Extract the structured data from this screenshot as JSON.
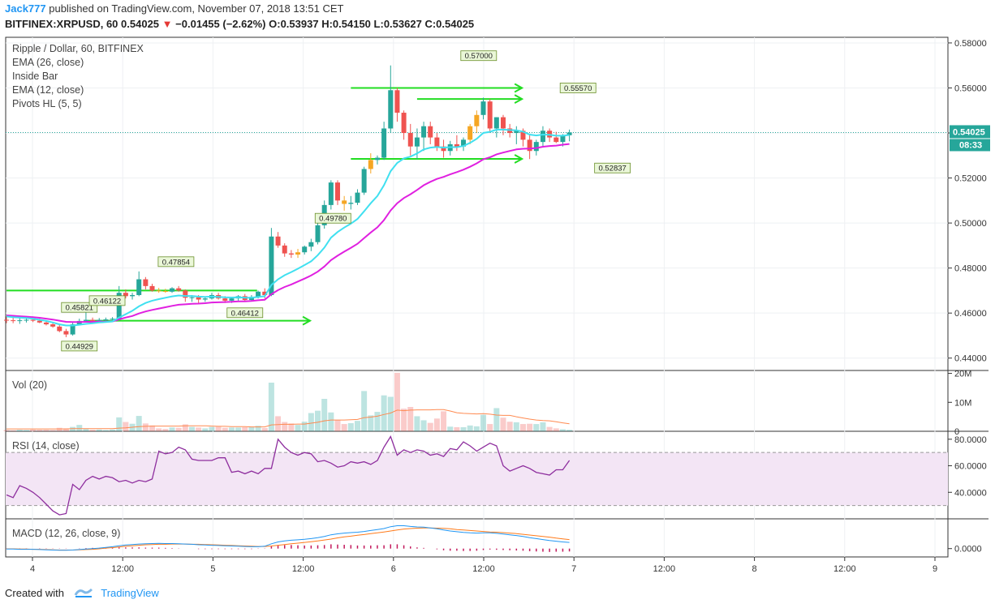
{
  "header": {
    "user": "Jack777",
    "published_text": " published on TradingView.com, November 07, 2018 13:51 CET",
    "symbol": "BITFINEX:XRPUSD, 60",
    "last": "0.54025",
    "change": "−0.01455 (−2.62%)",
    "ohlc": {
      "o_label": "O:",
      "o": "0.53937",
      "h_label": "H:",
      "h": "0.54150",
      "l_label": "L:",
      "l": "0.53627",
      "c_label": "C:",
      "c": "0.54025"
    }
  },
  "legend": {
    "title": "Ripple / Dollar, 60, BITFINEX",
    "ema26": "EMA (26, close)",
    "inside_bar": "Inside Bar",
    "ema12": "EMA (12, close)",
    "pivots": "Pivots HL (5, 5)"
  },
  "panes": {
    "vol": "Vol (20)",
    "rsi": "RSI (14, close)",
    "macd": "MACD (12, 26, close, 9)"
  },
  "price_tag": {
    "price": "0.54025",
    "countdown": "08:33"
  },
  "footer": {
    "created_with": "Created with",
    "brand": "TradingView"
  },
  "colors": {
    "up": "#26a69a",
    "down": "#ef5350",
    "inside": "#f5a623",
    "ema12": "#40e0f0",
    "ema26": "#e020e0",
    "green_lines": "#22dd22",
    "rsi": "#8e2e9e",
    "macd": "#2196f3",
    "signal": "#ff7a1a",
    "hist": "#c2185b"
  },
  "chart_data": {
    "type": "candlestick",
    "title": "Ripple / Dollar, 60, BITFINEX",
    "x_ticks": [
      "4",
      "12:00",
      "5",
      "12:00",
      "6",
      "12:00",
      "7",
      "12:00",
      "8",
      "12:00",
      "9"
    ],
    "price_axis": {
      "ticks": [
        "0.58000",
        "0.56000",
        "0.54000",
        "0.52000",
        "0.50000",
        "0.48000",
        "0.46000",
        "0.44000"
      ],
      "range": [
        0.4345,
        0.5825
      ]
    },
    "pivot_labels": [
      "0.45821",
      "0.46122",
      "0.44929",
      "0.47854",
      "0.46412",
      "0.49780",
      "0.57000",
      "0.55570",
      "0.52837"
    ],
    "green_levels": [
      {
        "price": 0.47,
        "from_bar": 0,
        "to_bar": 36
      },
      {
        "price": 0.4566,
        "from_bar": 12,
        "to_bar": 44,
        "arrow": true
      },
      {
        "price": 0.56,
        "from_bar": 52,
        "to_bar": 76,
        "arrow": true
      },
      {
        "price": 0.5551,
        "from_bar": 62,
        "to_bar": 76,
        "arrow": true
      },
      {
        "price": 0.5285,
        "from_bar": 52,
        "to_bar": 76,
        "arrow": true
      }
    ],
    "candles": [
      [
        0.457,
        0.4585,
        0.4555,
        0.4568
      ],
      [
        0.4568,
        0.458,
        0.4555,
        0.4565
      ],
      [
        0.4565,
        0.4582,
        0.4552,
        0.4568
      ],
      [
        0.4568,
        0.4582,
        0.4558,
        0.457
      ],
      [
        0.457,
        0.4585,
        0.456,
        0.4566
      ],
      [
        0.4566,
        0.4575,
        0.4555,
        0.4558
      ],
      [
        0.4558,
        0.4565,
        0.4545,
        0.455
      ],
      [
        0.455,
        0.4558,
        0.4535,
        0.454
      ],
      [
        0.454,
        0.4548,
        0.4515,
        0.452
      ],
      [
        0.452,
        0.453,
        0.4493,
        0.4505
      ],
      [
        0.4505,
        0.456,
        0.45,
        0.455
      ],
      [
        0.455,
        0.4575,
        0.4545,
        0.4565
      ],
      [
        0.4565,
        0.4612,
        0.456,
        0.457
      ],
      [
        0.457,
        0.458,
        0.456,
        0.4565
      ],
      [
        0.4565,
        0.4578,
        0.4558,
        0.457
      ],
      [
        0.457,
        0.458,
        0.456,
        0.4572
      ],
      [
        0.4572,
        0.4582,
        0.4565,
        0.4575
      ],
      [
        0.4575,
        0.472,
        0.457,
        0.469
      ],
      [
        0.469,
        0.4705,
        0.4665,
        0.4675
      ],
      [
        0.4675,
        0.469,
        0.466,
        0.468
      ],
      [
        0.468,
        0.4785,
        0.4675,
        0.475
      ],
      [
        0.475,
        0.476,
        0.4705,
        0.472
      ],
      [
        0.472,
        0.473,
        0.4695,
        0.47
      ],
      [
        0.47,
        0.4712,
        0.469,
        0.4698
      ],
      [
        0.4698,
        0.4708,
        0.469,
        0.4695
      ],
      [
        0.4695,
        0.4715,
        0.469,
        0.471
      ],
      [
        0.471,
        0.472,
        0.4695,
        0.47
      ],
      [
        0.47,
        0.4705,
        0.465,
        0.4668
      ],
      [
        0.4668,
        0.468,
        0.465,
        0.467
      ],
      [
        0.467,
        0.468,
        0.4641,
        0.466
      ],
      [
        0.466,
        0.4672,
        0.465,
        0.4665
      ],
      [
        0.4665,
        0.469,
        0.466,
        0.468
      ],
      [
        0.468,
        0.469,
        0.466,
        0.4665
      ],
      [
        0.4665,
        0.4675,
        0.4645,
        0.4655
      ],
      [
        0.4655,
        0.467,
        0.4645,
        0.4665
      ],
      [
        0.4665,
        0.468,
        0.4655,
        0.4675
      ],
      [
        0.4675,
        0.4685,
        0.465,
        0.4658
      ],
      [
        0.4658,
        0.468,
        0.4652,
        0.4672
      ],
      [
        0.4672,
        0.47,
        0.4665,
        0.4695
      ],
      [
        0.4695,
        0.471,
        0.4665,
        0.468
      ],
      [
        0.468,
        0.4978,
        0.4675,
        0.494
      ],
      [
        0.494,
        0.496,
        0.489,
        0.49
      ],
      [
        0.49,
        0.491,
        0.485,
        0.4865
      ],
      [
        0.4865,
        0.488,
        0.4845,
        0.486
      ],
      [
        0.486,
        0.4885,
        0.4845,
        0.487
      ],
      [
        0.487,
        0.49,
        0.486,
        0.4895
      ],
      [
        0.4895,
        0.493,
        0.4875,
        0.4915
      ],
      [
        0.4915,
        0.5,
        0.4905,
        0.499
      ],
      [
        0.499,
        0.51,
        0.4975,
        0.508
      ],
      [
        0.508,
        0.519,
        0.506,
        0.518
      ],
      [
        0.518,
        0.519,
        0.508,
        0.51
      ],
      [
        0.51,
        0.512,
        0.5055,
        0.5085
      ],
      [
        0.5085,
        0.512,
        0.506,
        0.509
      ],
      [
        0.509,
        0.515,
        0.508,
        0.5135
      ],
      [
        0.5135,
        0.525,
        0.5125,
        0.524
      ],
      [
        0.524,
        0.531,
        0.522,
        0.528
      ],
      [
        0.528,
        0.53,
        0.526,
        0.529
      ],
      [
        0.529,
        0.545,
        0.528,
        0.542
      ],
      [
        0.542,
        0.57,
        0.54,
        0.559
      ],
      [
        0.559,
        0.56,
        0.545,
        0.549
      ],
      [
        0.549,
        0.55,
        0.537,
        0.54
      ],
      [
        0.54,
        0.544,
        0.53,
        0.534
      ],
      [
        0.534,
        0.542,
        0.5284,
        0.538
      ],
      [
        0.538,
        0.545,
        0.532,
        0.543
      ],
      [
        0.543,
        0.545,
        0.535,
        0.538
      ],
      [
        0.538,
        0.54,
        0.532,
        0.534
      ],
      [
        0.534,
        0.537,
        0.529,
        0.532
      ],
      [
        0.532,
        0.5365,
        0.53,
        0.535
      ],
      [
        0.535,
        0.539,
        0.532,
        0.534
      ],
      [
        0.534,
        0.538,
        0.532,
        0.537
      ],
      [
        0.537,
        0.544,
        0.535,
        0.543
      ],
      [
        0.543,
        0.55,
        0.54,
        0.548
      ],
      [
        0.548,
        0.5557,
        0.546,
        0.554
      ],
      [
        0.554,
        0.555,
        0.54,
        0.542
      ],
      [
        0.542,
        0.547,
        0.538,
        0.547
      ],
      [
        0.547,
        0.548,
        0.539,
        0.542
      ],
      [
        0.542,
        0.544,
        0.538,
        0.54
      ],
      [
        0.54,
        0.543,
        0.535,
        0.541
      ],
      [
        0.541,
        0.542,
        0.534,
        0.537
      ],
      [
        0.537,
        0.539,
        0.5284,
        0.532
      ],
      [
        0.532,
        0.537,
        0.53,
        0.536
      ],
      [
        0.536,
        0.543,
        0.534,
        0.541
      ],
      [
        0.541,
        0.542,
        0.536,
        0.538
      ],
      [
        0.538,
        0.5405,
        0.5355,
        0.536
      ],
      [
        0.536,
        0.5395,
        0.534,
        0.539
      ],
      [
        0.539,
        0.5415,
        0.5363,
        0.5402
      ]
    ],
    "inside_bars": [
      23,
      24,
      44,
      51,
      55,
      70,
      71
    ],
    "ema12": [
      0.4585,
      0.4582,
      0.458,
      0.4578,
      0.4575,
      0.457,
      0.4565,
      0.4558,
      0.455,
      0.4545,
      0.4545,
      0.4548,
      0.4552,
      0.4555,
      0.4558,
      0.456,
      0.4563,
      0.458,
      0.4595,
      0.461,
      0.463,
      0.4645,
      0.4655,
      0.4662,
      0.4668,
      0.4674,
      0.4678,
      0.4676,
      0.4676,
      0.4673,
      0.4672,
      0.4673,
      0.4672,
      0.467,
      0.4669,
      0.467,
      0.4668,
      0.4668,
      0.4672,
      0.4675,
      0.4725,
      0.475,
      0.4768,
      0.4782,
      0.4797,
      0.4813,
      0.483,
      0.4857,
      0.4891,
      0.4935,
      0.496,
      0.498,
      0.4997,
      0.5018,
      0.5052,
      0.5088,
      0.512,
      0.5168,
      0.523,
      0.5267,
      0.5287,
      0.5295,
      0.5309,
      0.5327,
      0.5335,
      0.5338,
      0.5335,
      0.5337,
      0.5337,
      0.5342,
      0.5356,
      0.5374,
      0.54,
      0.5405,
      0.5415,
      0.5415,
      0.5413,
      0.5412,
      0.5406,
      0.5393,
      0.5389,
      0.5393,
      0.5392,
      0.5388,
      0.5388,
      0.5391
    ],
    "ema26": [
      0.459,
      0.4588,
      0.4586,
      0.4584,
      0.4582,
      0.4579,
      0.4575,
      0.4571,
      0.4566,
      0.4561,
      0.456,
      0.456,
      0.4561,
      0.4561,
      0.4562,
      0.4562,
      0.4563,
      0.4572,
      0.458,
      0.4587,
      0.4598,
      0.4607,
      0.4614,
      0.462,
      0.4626,
      0.4632,
      0.4637,
      0.4639,
      0.4641,
      0.4642,
      0.4644,
      0.4647,
      0.4648,
      0.4649,
      0.465,
      0.4652,
      0.4652,
      0.4654,
      0.4657,
      0.4659,
      0.4684,
      0.4702,
      0.4716,
      0.4727,
      0.474,
      0.4753,
      0.4767,
      0.4784,
      0.4807,
      0.4835,
      0.4855,
      0.4873,
      0.489,
      0.4908,
      0.4933,
      0.4958,
      0.4981,
      0.5013,
      0.5056,
      0.5088,
      0.5111,
      0.5128,
      0.5147,
      0.5168,
      0.5183,
      0.5196,
      0.5205,
      0.5216,
      0.5226,
      0.5237,
      0.525,
      0.5265,
      0.5283,
      0.5292,
      0.5305,
      0.5313,
      0.532,
      0.5327,
      0.533,
      0.5331,
      0.5333,
      0.5339,
      0.5342,
      0.5344,
      0.5348,
      0.5351
    ],
    "volume": {
      "y_ticks": [
        "20M",
        "10M",
        "0"
      ],
      "range": [
        0,
        21
      ],
      "unit": "M",
      "values": [
        0.4,
        0.3,
        0.5,
        0.4,
        0.6,
        0.5,
        0.5,
        0.4,
        1.2,
        1.0,
        1.5,
        2.2,
        0.9,
        0.5,
        0.6,
        0.4,
        0.6,
        4.8,
        3.2,
        2.6,
        5.3,
        2.7,
        2.0,
        1.0,
        0.8,
        1.3,
        1.2,
        2.4,
        1.5,
        1.3,
        1.0,
        1.5,
        1.6,
        1.2,
        1.3,
        1.3,
        1.4,
        1.4,
        1.9,
        1.1,
        16.8,
        5.2,
        3.2,
        2.7,
        2.2,
        3.3,
        6.3,
        7.1,
        11.2,
        6.5,
        3.8,
        2.5,
        2.8,
        3.6,
        13.9,
        5.5,
        6.7,
        12.4,
        11.9,
        20.2,
        7.8,
        8.4,
        5.2,
        3.8,
        2.9,
        4.4,
        6.9,
        1.6,
        1.4,
        1.4,
        2.0,
        1.7,
        5.7,
        2.5,
        8.0,
        4.7,
        3.3,
        3.1,
        2.5,
        2.6,
        2.5,
        3.1,
        1.5,
        1.0,
        0.7,
        0.5
      ],
      "ma": [
        0.8,
        0.8,
        0.8,
        0.8,
        0.8,
        0.8,
        0.8,
        0.8,
        0.8,
        0.8,
        0.9,
        0.9,
        0.9,
        0.9,
        0.9,
        0.9,
        0.9,
        1.1,
        1.2,
        1.4,
        1.6,
        1.7,
        1.8,
        1.8,
        1.8,
        1.8,
        1.8,
        1.9,
        1.9,
        1.9,
        1.9,
        1.8,
        1.7,
        1.7,
        1.6,
        1.6,
        1.6,
        1.5,
        1.5,
        1.5,
        2.2,
        2.3,
        2.4,
        2.4,
        2.5,
        2.5,
        2.8,
        3.1,
        3.6,
        3.9,
        3.9,
        3.9,
        4.0,
        4.1,
        4.7,
        4.9,
        5.2,
        5.8,
        6.3,
        7.3,
        7.1,
        7.3,
        7.4,
        7.4,
        7.4,
        7.5,
        7.5,
        7.0,
        6.4,
        6.2,
        6.1,
        6.0,
        6.1,
        5.9,
        5.6,
        5.5,
        5.5,
        5.0,
        4.6,
        4.2,
        3.9,
        3.7,
        3.6,
        3.3,
        2.9,
        2.6
      ]
    },
    "rsi": {
      "y_ticks": [
        "80.0000",
        "60.0000",
        "40.0000"
      ],
      "range": [
        20,
        86
      ],
      "bands": [
        30,
        70
      ],
      "values": [
        38,
        36,
        45,
        43,
        40,
        36,
        31,
        26,
        23,
        24,
        46,
        42,
        49,
        52,
        50,
        52,
        51,
        48,
        49,
        47,
        49,
        48,
        50,
        71,
        69,
        70,
        74,
        72,
        65,
        64,
        64,
        64,
        66,
        66,
        55,
        56,
        54,
        56,
        54,
        58,
        58,
        80,
        74,
        70,
        68,
        70,
        69,
        63,
        64,
        62,
        59,
        60,
        63,
        62,
        63,
        61,
        64,
        74,
        82,
        68,
        72,
        70,
        72,
        71,
        68,
        69,
        67,
        73,
        72,
        78,
        75,
        71,
        74,
        77,
        75,
        60,
        56,
        58,
        60,
        58,
        55,
        54,
        53,
        57,
        57,
        64
      ],
      "band_fill": "#f3e5f5"
    },
    "macd": {
      "y_ticks": [
        "0.0000"
      ],
      "range": [
        -0.0035,
        0.0125
      ],
      "macd": [
        -0.0002,
        -0.0002,
        -0.0003,
        -0.0003,
        -0.0003,
        -0.0004,
        -0.0005,
        -0.0006,
        -0.0007,
        -0.0007,
        -0.0006,
        -0.0004,
        -0.0002,
        0.0,
        0.0002,
        0.0005,
        0.0008,
        0.0012,
        0.0015,
        0.0017,
        0.0019,
        0.002,
        0.0021,
        0.0022,
        0.0021,
        0.0021,
        0.002,
        0.0019,
        0.0018,
        0.0016,
        0.0015,
        0.0014,
        0.0013,
        0.0012,
        0.0011,
        0.001,
        0.0009,
        0.0008,
        0.0008,
        0.001,
        0.002,
        0.0028,
        0.0032,
        0.0035,
        0.0037,
        0.0039,
        0.0042,
        0.0046,
        0.0051,
        0.0058,
        0.0062,
        0.0065,
        0.0067,
        0.0069,
        0.0072,
        0.0076,
        0.008,
        0.0084,
        0.0092,
        0.0096,
        0.0096,
        0.0093,
        0.0091,
        0.009,
        0.0087,
        0.0083,
        0.0078,
        0.0074,
        0.0071,
        0.0068,
        0.0066,
        0.0065,
        0.0066,
        0.0066,
        0.0064,
        0.0061,
        0.0058,
        0.0055,
        0.0051,
        0.0046,
        0.0042,
        0.0038,
        0.0034,
        0.0031,
        0.0028,
        0.0026
      ],
      "signal": [
        -0.0001,
        -0.0001,
        -0.0002,
        -0.0002,
        -0.0003,
        -0.0003,
        -0.0004,
        -0.0005,
        -0.0006,
        -0.0006,
        -0.0006,
        -0.0005,
        -0.0004,
        -0.0003,
        -0.0001,
        0.0002,
        0.0004,
        0.0007,
        0.001,
        0.0012,
        0.0014,
        0.0016,
        0.0017,
        0.0018,
        0.0018,
        0.0019,
        0.0019,
        0.0019,
        0.0018,
        0.0018,
        0.0017,
        0.0016,
        0.0015,
        0.0014,
        0.0013,
        0.0012,
        0.0011,
        0.001,
        0.0009,
        0.0009,
        0.0011,
        0.0014,
        0.0017,
        0.002,
        0.0023,
        0.0026,
        0.0029,
        0.0032,
        0.0036,
        0.004,
        0.0045,
        0.0049,
        0.0052,
        0.0056,
        0.0059,
        0.0063,
        0.0066,
        0.007,
        0.0074,
        0.0078,
        0.0082,
        0.0084,
        0.0086,
        0.0087,
        0.0087,
        0.0086,
        0.0085,
        0.0083,
        0.008,
        0.0078,
        0.0076,
        0.0074,
        0.0072,
        0.007,
        0.0069,
        0.0067,
        0.0065,
        0.0063,
        0.006,
        0.0057,
        0.0054,
        0.0051,
        0.0048,
        0.0044,
        0.0041,
        0.0038
      ]
    }
  }
}
